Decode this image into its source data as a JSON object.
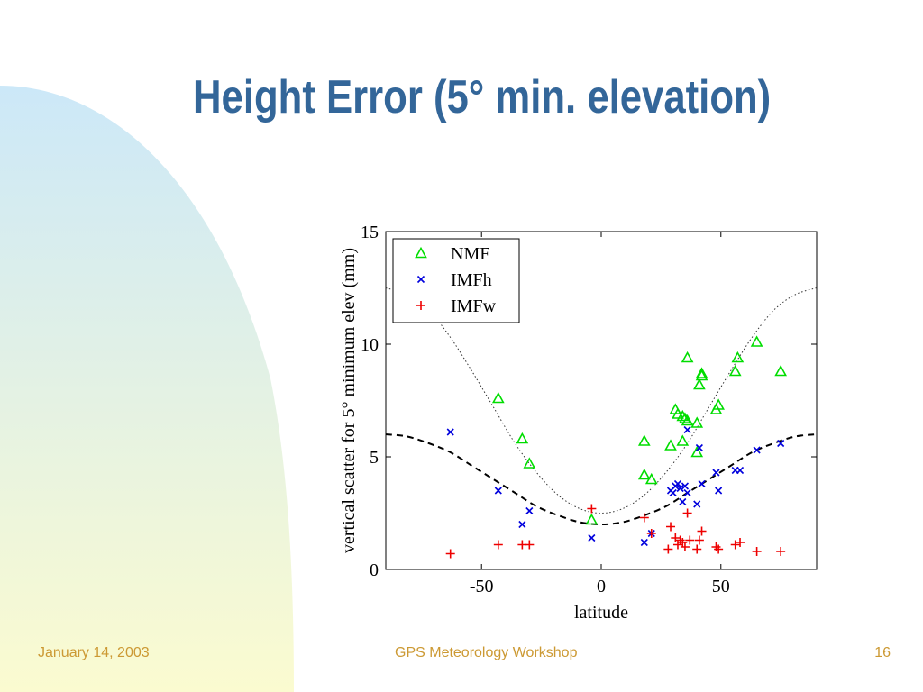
{
  "slide": {
    "title": "Height Error (5° min. elevation)",
    "footer_date": "January 14, 2003",
    "footer_center": "GPS Meteorology Workshop",
    "footer_page": "16"
  },
  "colors": {
    "title": "#336699",
    "footer": "#cc9933",
    "NMF": "#00dd00",
    "IMFh": "#0000dd",
    "IMFw": "#ee0000",
    "deco_top": "#cce8f8",
    "deco_bottom": "#fbfbd0"
  },
  "chart_data": {
    "type": "scatter",
    "xlabel": "latitude",
    "ylabel": "vertical scatter for 5° minimum elev (mm)",
    "xlim": [
      -90,
      90
    ],
    "ylim": [
      0,
      15
    ],
    "xticks": [
      -50,
      0,
      50
    ],
    "xtick_labels": [
      "-50",
      "0",
      "50"
    ],
    "yticks": [
      0,
      5,
      10,
      15
    ],
    "ytick_labels": [
      "0",
      "5",
      "10",
      "15"
    ],
    "grid": false,
    "legend_position": "top-left",
    "series": [
      {
        "name": "NMF",
        "marker": "triangle",
        "points": [
          [
            -43,
            7.6
          ],
          [
            -33,
            5.8
          ],
          [
            -30,
            4.7
          ],
          [
            -4,
            2.2
          ],
          [
            18,
            5.7
          ],
          [
            18,
            4.2
          ],
          [
            21,
            4.0
          ],
          [
            29,
            5.5
          ],
          [
            31,
            7.1
          ],
          [
            32,
            6.9
          ],
          [
            34,
            5.7
          ],
          [
            34,
            6.8
          ],
          [
            35,
            6.7
          ],
          [
            36,
            6.6
          ],
          [
            36,
            9.4
          ],
          [
            40,
            6.5
          ],
          [
            40,
            5.2
          ],
          [
            41,
            8.2
          ],
          [
            42,
            8.6
          ],
          [
            42,
            8.7
          ],
          [
            48,
            7.1
          ],
          [
            49,
            7.3
          ],
          [
            56,
            8.8
          ],
          [
            57,
            9.4
          ],
          [
            65,
            10.1
          ],
          [
            75,
            8.8
          ]
        ]
      },
      {
        "name": "IMFh",
        "marker": "x",
        "points": [
          [
            -63,
            6.1
          ],
          [
            -43,
            3.5
          ],
          [
            -33,
            2.0
          ],
          [
            -30,
            2.6
          ],
          [
            -4,
            1.4
          ],
          [
            18,
            1.2
          ],
          [
            21,
            1.6
          ],
          [
            29,
            3.5
          ],
          [
            30,
            3.4
          ],
          [
            31,
            3.7
          ],
          [
            32,
            3.8
          ],
          [
            33,
            3.6
          ],
          [
            34,
            3.0
          ],
          [
            35,
            3.7
          ],
          [
            36,
            3.4
          ],
          [
            36,
            6.2
          ],
          [
            40,
            2.9
          ],
          [
            41,
            5.4
          ],
          [
            42,
            3.8
          ],
          [
            48,
            4.3
          ],
          [
            49,
            3.5
          ],
          [
            56,
            4.4
          ],
          [
            58,
            4.4
          ],
          [
            65,
            5.3
          ],
          [
            75,
            5.6
          ]
        ]
      },
      {
        "name": "IMFw",
        "marker": "plus",
        "points": [
          [
            -63,
            0.7
          ],
          [
            -43,
            1.1
          ],
          [
            -33,
            1.1
          ],
          [
            -30,
            1.1
          ],
          [
            -4,
            2.7
          ],
          [
            18,
            2.3
          ],
          [
            21,
            1.6
          ],
          [
            28,
            0.9
          ],
          [
            29,
            1.9
          ],
          [
            31,
            1.4
          ],
          [
            32,
            1.1
          ],
          [
            33,
            1.3
          ],
          [
            34,
            1.2
          ],
          [
            35,
            1.0
          ],
          [
            36,
            2.5
          ],
          [
            37,
            1.3
          ],
          [
            40,
            0.9
          ],
          [
            41,
            1.3
          ],
          [
            42,
            1.7
          ],
          [
            48,
            1.0
          ],
          [
            49,
            0.9
          ],
          [
            56,
            1.1
          ],
          [
            58,
            1.2
          ],
          [
            65,
            0.8
          ],
          [
            75,
            0.8
          ]
        ]
      }
    ],
    "curves": [
      {
        "style": "dashed",
        "points": [
          [
            -90,
            6.0
          ],
          [
            -81,
            5.9
          ],
          [
            -72,
            5.6
          ],
          [
            -63,
            5.2
          ],
          [
            -54,
            4.6
          ],
          [
            -45,
            4.0
          ],
          [
            -36,
            3.4
          ],
          [
            -27,
            2.8
          ],
          [
            -18,
            2.4
          ],
          [
            -9,
            2.1
          ],
          [
            0,
            2.0
          ],
          [
            9,
            2.1
          ],
          [
            18,
            2.4
          ],
          [
            27,
            2.8
          ],
          [
            36,
            3.4
          ],
          [
            45,
            4.0
          ],
          [
            54,
            4.6
          ],
          [
            63,
            5.2
          ],
          [
            72,
            5.6
          ],
          [
            81,
            5.9
          ],
          [
            90,
            6.0
          ]
        ]
      },
      {
        "style": "dotted",
        "points": [
          [
            -90,
            12.5
          ],
          [
            -81,
            12.2
          ],
          [
            -72,
            11.5
          ],
          [
            -63,
            10.3
          ],
          [
            -54,
            8.8
          ],
          [
            -45,
            7.2
          ],
          [
            -36,
            5.6
          ],
          [
            -27,
            4.3
          ],
          [
            -18,
            3.3
          ],
          [
            -9,
            2.7
          ],
          [
            0,
            2.5
          ],
          [
            9,
            2.7
          ],
          [
            18,
            3.3
          ],
          [
            27,
            4.3
          ],
          [
            36,
            5.6
          ],
          [
            45,
            7.2
          ],
          [
            54,
            8.8
          ],
          [
            63,
            10.3
          ],
          [
            72,
            11.5
          ],
          [
            81,
            12.2
          ],
          [
            90,
            12.5
          ]
        ]
      }
    ]
  }
}
